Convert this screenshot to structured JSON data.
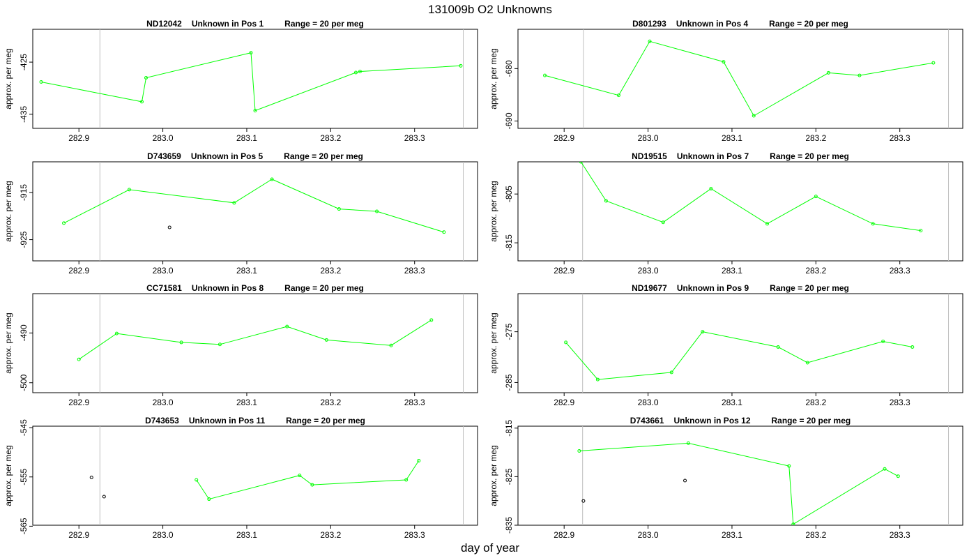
{
  "figure": {
    "title": "131009b  O2 Unknowns",
    "xlabel": "day of year"
  },
  "colors": {
    "series": "#00ff00",
    "extra": "#000000",
    "vline": "#bebebe"
  },
  "chart_data": [
    {
      "type": "scatter",
      "sample": "ND12042",
      "position": "Unknown in Pos 1",
      "range": "Range = 20 per meg",
      "ylabel": "approx. per meg",
      "xlim": [
        282.845,
        283.375
      ],
      "ylim": [
        -437.7,
        -418.7
      ],
      "xticks": [
        282.9,
        283.0,
        283.1,
        283.2,
        283.3
      ],
      "yticks": [
        -425,
        -435
      ],
      "vlines": [
        282.925,
        283.358
      ],
      "series": [
        {
          "x": [
            282.855,
            282.975,
            282.98,
            283.105,
            283.11,
            283.23,
            283.235,
            283.355
          ],
          "y": [
            -428.8,
            -432.6,
            -428.0,
            -423.2,
            -434.3,
            -427.0,
            -426.8,
            -425.7
          ]
        }
      ],
      "extra_points": []
    },
    {
      "type": "scatter",
      "sample": "D801293",
      "position": "Unknown in Pos 4",
      "range": "Range = 20 per meg",
      "ylabel": "approx. per meg",
      "xlim": [
        282.845,
        283.375
      ],
      "ylim": [
        -691.4,
        -672.5
      ],
      "xticks": [
        282.9,
        283.0,
        283.1,
        283.2,
        283.3
      ],
      "yticks": [
        -680,
        -690
      ],
      "vlines": [
        282.923,
        283.358
      ],
      "series": [
        {
          "x": [
            282.877,
            282.965,
            283.002,
            283.09,
            283.126,
            283.215,
            283.252,
            283.34
          ],
          "y": [
            -681.3,
            -685.1,
            -674.8,
            -678.7,
            -689.0,
            -680.8,
            -681.3,
            -678.9
          ]
        }
      ],
      "extra_points": []
    },
    {
      "type": "scatter",
      "sample": "D743659",
      "position": "Unknown in Pos 5",
      "range": "Range = 20 per meg",
      "ylabel": "approx. per meg",
      "xlim": [
        282.845,
        283.375
      ],
      "ylim": [
        -929.5,
        -908.5
      ],
      "xticks": [
        282.9,
        283.0,
        283.1,
        283.2,
        283.3
      ],
      "yticks": [
        -915,
        -925
      ],
      "vlines": [
        282.925,
        283.358
      ],
      "series": [
        {
          "x": [
            282.882,
            282.96,
            283.085,
            283.13,
            283.21,
            283.255,
            283.335
          ],
          "y": [
            -921.5,
            -914.4,
            -917.2,
            -912.2,
            -918.5,
            -919.0,
            -923.4
          ]
        }
      ],
      "extra_points": [
        {
          "x": 283.008,
          "y": -922.4
        }
      ]
    },
    {
      "type": "scatter",
      "sample": "ND19515",
      "position": "Unknown in Pos 7",
      "range": "Range = 20 per meg",
      "ylabel": "approx. per meg",
      "xlim": [
        282.845,
        283.375
      ],
      "ylim": [
        -818.7,
        -798.4
      ],
      "xticks": [
        282.9,
        283.0,
        283.1,
        283.2,
        283.3
      ],
      "yticks": [
        -805,
        -815
      ],
      "vlines": [
        282.922,
        283.358
      ],
      "series": [
        {
          "x": [
            282.92,
            282.95,
            283.018,
            283.075,
            283.142,
            283.2,
            283.268,
            283.325
          ],
          "y": [
            -798.4,
            -806.4,
            -810.8,
            -803.9,
            -811.1,
            -805.5,
            -811.1,
            -812.5
          ]
        }
      ],
      "extra_points": []
    },
    {
      "type": "scatter",
      "sample": "CC71581",
      "position": "Unknown in Pos 8",
      "range": "Range = 20 per meg",
      "ylabel": "approx. per meg",
      "xlim": [
        282.845,
        283.375
      ],
      "ylim": [
        -502.0,
        -482.1
      ],
      "xticks": [
        282.9,
        283.0,
        283.1,
        283.2,
        283.3
      ],
      "yticks": [
        -490,
        -500
      ],
      "vlines": [
        282.925,
        283.358
      ],
      "series": [
        {
          "x": [
            282.9,
            282.945,
            283.022,
            283.068,
            283.148,
            283.195,
            283.272,
            283.32
          ],
          "y": [
            -495.3,
            -490.1,
            -491.9,
            -492.3,
            -488.7,
            -491.4,
            -492.5,
            -487.4
          ]
        }
      ],
      "extra_points": []
    },
    {
      "type": "scatter",
      "sample": "ND19677",
      "position": "Unknown in Pos 9",
      "range": "Range = 20 per meg",
      "ylabel": "approx. per meg",
      "xlim": [
        282.845,
        283.375
      ],
      "ylim": [
        -287.0,
        -267.5
      ],
      "xticks": [
        282.9,
        283.0,
        283.1,
        283.2,
        283.3
      ],
      "yticks": [
        -275,
        -285
      ],
      "vlines": [
        282.922,
        283.358
      ],
      "series": [
        {
          "x": [
            282.902,
            282.94,
            283.028,
            283.065,
            283.155,
            283.19,
            283.28,
            283.315
          ],
          "y": [
            -277.1,
            -284.4,
            -283.0,
            -275.0,
            -278.0,
            -281.1,
            -276.9,
            -278.0
          ]
        }
      ],
      "extra_points": []
    },
    {
      "type": "scatter",
      "sample": "D743653",
      "position": "Unknown in Pos 11",
      "range": "Range = 20 per meg",
      "ylabel": "approx. per meg",
      "xlim": [
        282.845,
        283.375
      ],
      "ylim": [
        -564.8,
        -544.7
      ],
      "xticks": [
        282.9,
        283.0,
        283.1,
        283.2,
        283.3
      ],
      "yticks": [
        -545,
        -555,
        -565
      ],
      "vlines": [
        282.925,
        283.358
      ],
      "series": [
        {
          "x": [
            283.04,
            283.055,
            283.163,
            283.178,
            283.29,
            283.305
          ],
          "y": [
            -555.6,
            -559.5,
            -554.7,
            -556.6,
            -555.6,
            -551.7
          ]
        }
      ],
      "extra_points": [
        {
          "x": 282.915,
          "y": -555.1
        },
        {
          "x": 282.93,
          "y": -559.0
        }
      ]
    },
    {
      "type": "scatter",
      "sample": "D743661",
      "position": "Unknown in Pos 12",
      "range": "Range = 20 per meg",
      "ylabel": "approx. per meg",
      "xlim": [
        282.845,
        283.375
      ],
      "ylim": [
        -835.0,
        -814.6
      ],
      "xticks": [
        282.9,
        283.0,
        283.1,
        283.2,
        283.3
      ],
      "yticks": [
        -815,
        -825,
        -835
      ],
      "vlines": [
        282.922,
        283.358
      ],
      "series": [
        {
          "x": [
            282.918,
            283.048,
            283.168,
            283.173,
            283.282,
            283.298
          ],
          "y": [
            -819.7,
            -818.1,
            -822.8,
            -834.8,
            -823.4,
            -824.9
          ]
        }
      ],
      "extra_points": [
        {
          "x": 283.044,
          "y": -825.8
        },
        {
          "x": 282.923,
          "y": -830.0
        }
      ]
    }
  ]
}
